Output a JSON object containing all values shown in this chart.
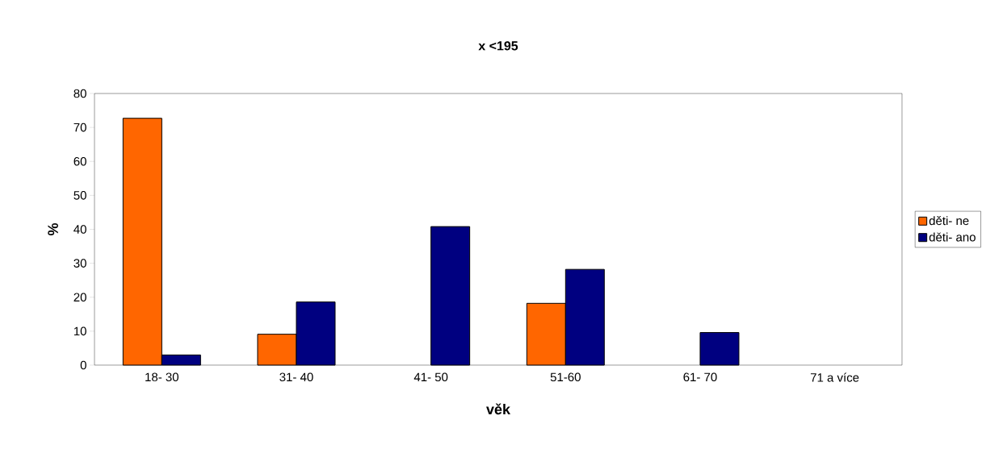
{
  "chart_data": {
    "type": "bar",
    "title": "x <195",
    "xlabel": "věk",
    "ylabel": "%",
    "categories": [
      "18- 30",
      "31- 40",
      "41- 50",
      "51-60",
      "61- 70",
      "71 a více"
    ],
    "series": [
      {
        "name": "děti- ne",
        "color": "#ff6600",
        "values": [
          72.7,
          9.1,
          null,
          18.2,
          null,
          null
        ]
      },
      {
        "name": "děti- ano",
        "color": "#000080",
        "values": [
          3.0,
          18.6,
          40.8,
          28.2,
          9.6,
          null
        ]
      }
    ],
    "ylim": [
      0,
      80
    ],
    "yticks": [
      0,
      10,
      20,
      30,
      40,
      50,
      60,
      70,
      80
    ],
    "legend": "right"
  }
}
